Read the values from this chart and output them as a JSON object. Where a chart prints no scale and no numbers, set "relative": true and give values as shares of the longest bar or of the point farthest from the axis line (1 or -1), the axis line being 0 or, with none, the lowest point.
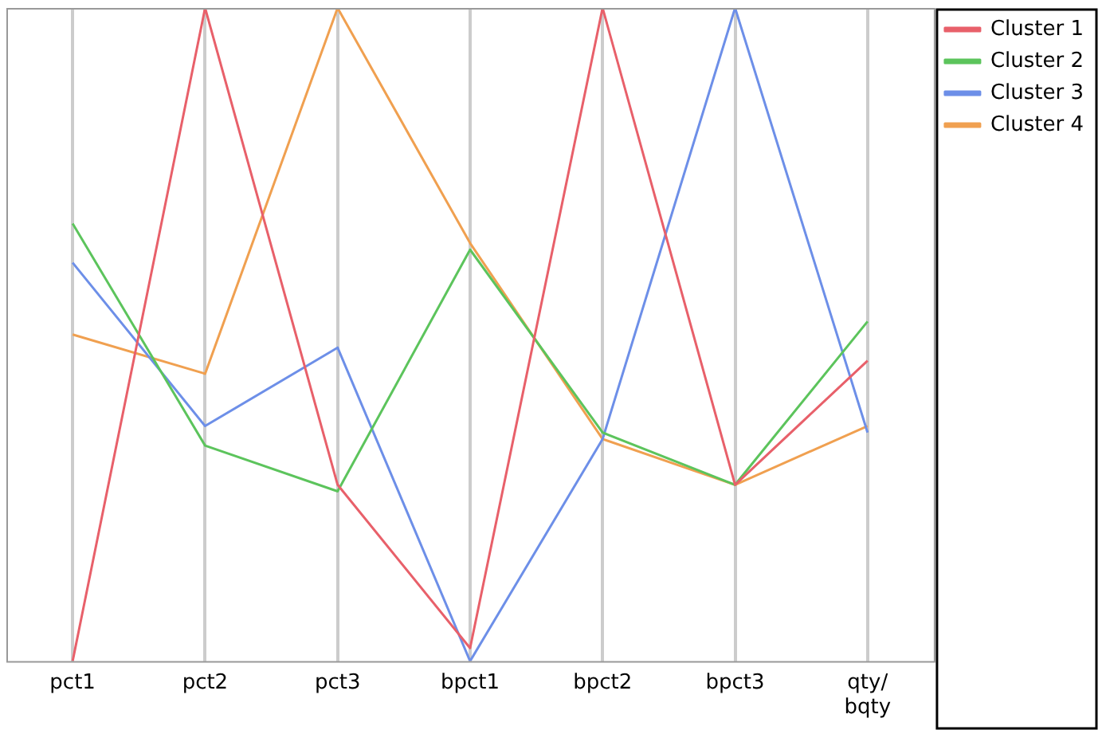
{
  "chart_data": {
    "type": "line",
    "relative": true,
    "grid": "x",
    "legend": "top right",
    "marker": "none",
    "line_style": "solid",
    "categories": [
      "pct1",
      "pct2",
      "pct3",
      "bpct1",
      "bpct2",
      "bpct3",
      "qty/bqty"
    ],
    "series": [
      {
        "name": "Cluster 1",
        "color": "#e8606a",
        "values": [
          0,
          1,
          0.27,
          0.02,
          1,
          0.27,
          0.46
        ]
      },
      {
        "name": "Cluster 2",
        "color": "#5cc45c",
        "values": [
          0.67,
          0.33,
          0.26,
          0.63,
          0.35,
          0.27,
          0.52
        ]
      },
      {
        "name": "Cluster 3",
        "color": "#6d8fe8",
        "values": [
          0.61,
          0.36,
          0.48,
          0,
          0.34,
          1,
          0.35
        ]
      },
      {
        "name": "Cluster 4",
        "color": "#f0a050",
        "values": [
          0.5,
          0.44,
          1,
          0.64,
          0.34,
          0.27,
          0.36
        ]
      }
    ]
  }
}
